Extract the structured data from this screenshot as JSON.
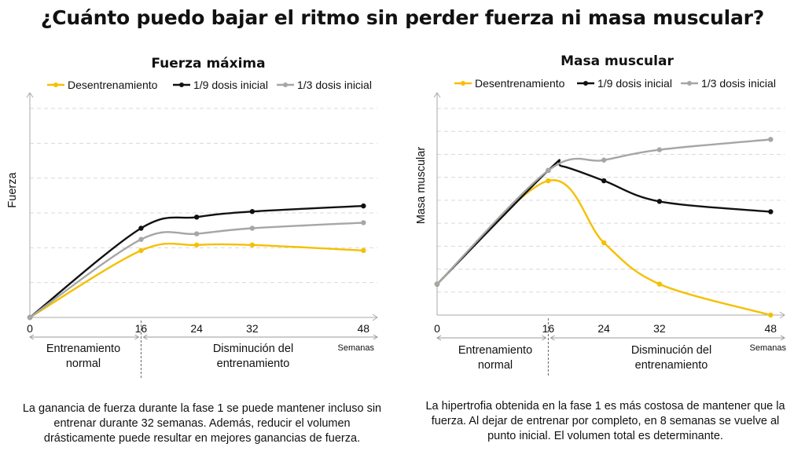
{
  "title": "¿Cuánto puedo bajar el ritmo sin perder fuerza ni masa muscular?",
  "captions": {
    "left": "La ganancia de fuerza durante la fase 1 se puede mantener incluso sin entrenar durante 32 semanas. Además, reducir el volumen drásticamente puede resultar en mejores ganancias de fuerza.",
    "right": "La hipertrofia obtenida en la fase 1 es más costosa de mantener que la fuerza. Al dejar de entrenar por completo, en 8 semanas se vuelve al punto inicial. El volumen total es determinante."
  },
  "colors": {
    "desentrenamiento": "#f5c000",
    "novena": "#111111",
    "tercio": "#a6a6a6",
    "grid": "#d9d9d9",
    "axis": "#aaaaaa",
    "phase": "#999999"
  },
  "chart_data": [
    {
      "type": "line",
      "title": "Fuerza máxima",
      "xlabel": "Semanas",
      "ylabel": "Fuerza",
      "x_ticks": [
        0,
        16,
        24,
        32,
        48
      ],
      "xlim": [
        0,
        50
      ],
      "ylim": [
        0,
        7.5
      ],
      "legend_position": "top",
      "grid": true,
      "phases": [
        {
          "label": "Entrenamiento normal",
          "from": 0,
          "to": 16
        },
        {
          "label": "Disminución del entrenamiento",
          "from": 16,
          "to": 50
        }
      ],
      "series": [
        {
          "name": "Desentrenamiento",
          "color_key": "desentrenamiento",
          "x": [
            0,
            16,
            24,
            32,
            48
          ],
          "y": [
            0,
            2.4,
            2.6,
            2.6,
            2.4
          ]
        },
        {
          "name": "1/9 dosis inicial",
          "color_key": "novena",
          "x": [
            0,
            16,
            24,
            32,
            48
          ],
          "y": [
            0,
            3.2,
            3.6,
            3.8,
            4.0
          ]
        },
        {
          "name": "1/3 dosis inicial",
          "color_key": "tercio",
          "x": [
            0,
            16,
            24,
            32,
            48
          ],
          "y": [
            0,
            2.8,
            3.0,
            3.2,
            3.4
          ]
        }
      ]
    },
    {
      "type": "line",
      "title": "Masa muscular",
      "xlabel": "Semanas",
      "ylabel": "Masa muscular",
      "x_ticks": [
        0,
        16,
        24,
        32,
        48
      ],
      "xlim": [
        0,
        50
      ],
      "ylim": [
        0,
        10
      ],
      "legend_position": "top",
      "grid": true,
      "phases": [
        {
          "label": "Entrenamiento normal",
          "from": 0,
          "to": 16
        },
        {
          "label": "Disminución del entrenamiento",
          "from": 16,
          "to": 50
        }
      ],
      "series": [
        {
          "name": "Desentrenamiento",
          "color_key": "desentrenamiento",
          "x": [
            0,
            16,
            24,
            32,
            48
          ],
          "y": [
            1.5,
            6.5,
            3.5,
            1.5,
            0
          ]
        },
        {
          "name": "1/9 dosis inicial",
          "color_key": "novena",
          "x": [
            0,
            16,
            18,
            24,
            32,
            48
          ],
          "y": [
            1.5,
            7.0,
            7.2,
            6.5,
            5.5,
            5.0
          ]
        },
        {
          "name": "1/3 dosis inicial",
          "color_key": "tercio",
          "x": [
            0,
            16,
            24,
            32,
            48
          ],
          "y": [
            1.5,
            7.0,
            7.5,
            8.0,
            8.5
          ]
        }
      ]
    }
  ]
}
